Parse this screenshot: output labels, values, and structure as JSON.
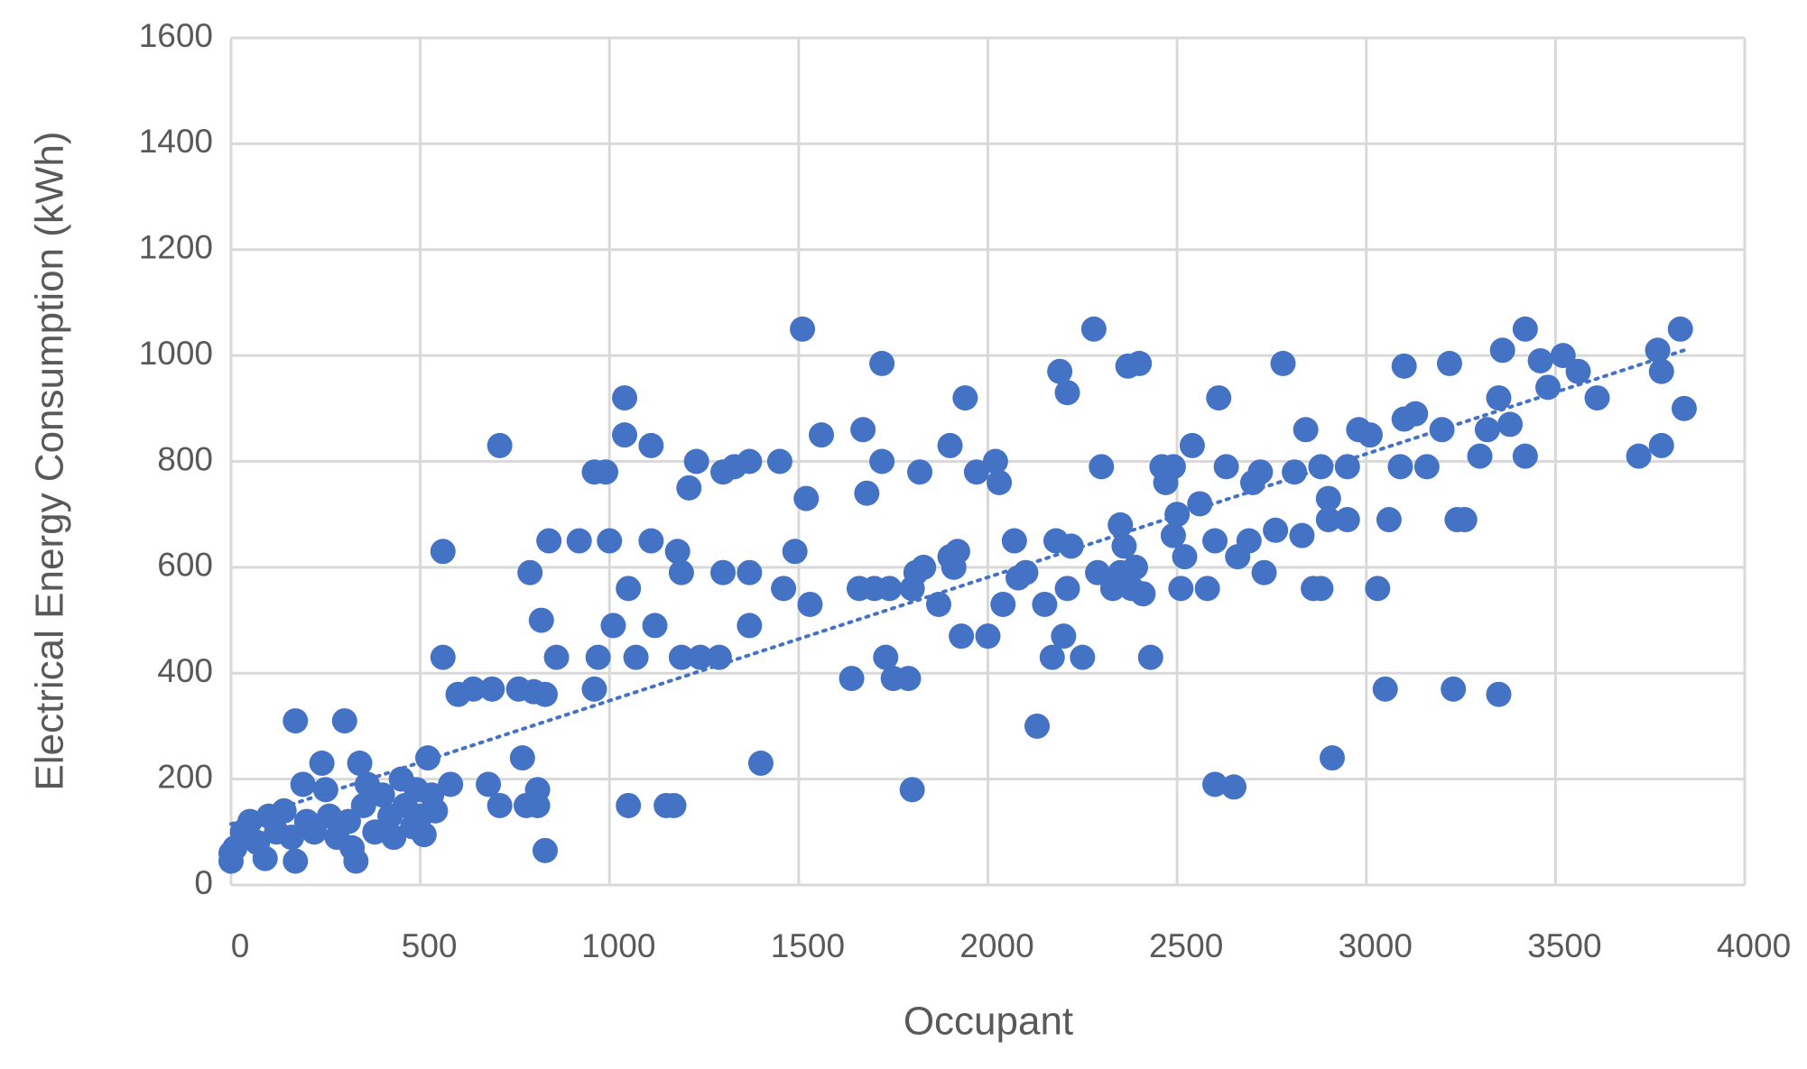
{
  "chart_data": {
    "type": "scatter",
    "xlabel": "Occupant",
    "ylabel": "Electrical Energy Consumption (kWh)",
    "color": "#4472c4",
    "grid": true,
    "xlim": [
      0,
      4000
    ],
    "xticks": [
      0,
      500,
      1000,
      1500,
      2000,
      2500,
      3000,
      3500,
      4000
    ],
    "ylim": [
      0,
      1600
    ],
    "yticks": [
      0,
      200,
      400,
      600,
      800,
      1000,
      1200,
      1400,
      1600
    ],
    "x": [
      0,
      0,
      10,
      30,
      50,
      70,
      90,
      100,
      120,
      140,
      160,
      170,
      170,
      190,
      200,
      220,
      240,
      250,
      260,
      280,
      300,
      310,
      320,
      330,
      340,
      350,
      360,
      380,
      400,
      420,
      430,
      450,
      460,
      480,
      490,
      500,
      510,
      520,
      530,
      540,
      560,
      560,
      580,
      600,
      640,
      680,
      690,
      710,
      710,
      760,
      770,
      780,
      790,
      800,
      810,
      810,
      820,
      830,
      830,
      840,
      860,
      920,
      960,
      960,
      970,
      990,
      1000,
      1010,
      1040,
      1040,
      1050,
      1050,
      1070,
      1110,
      1110,
      1120,
      1150,
      1170,
      1180,
      1190,
      1190,
      1210,
      1230,
      1240,
      1290,
      1300,
      1300,
      1330,
      1370,
      1370,
      1370,
      1400,
      1450,
      1460,
      1490,
      1510,
      1520,
      1530,
      1560,
      1640,
      1660,
      1670,
      1680,
      1700,
      1720,
      1720,
      1730,
      1740,
      1750,
      1790,
      1800,
      1800,
      1810,
      1820,
      1830,
      1870,
      1900,
      1900,
      1910,
      1920,
      1930,
      1940,
      1970,
      2000,
      2020,
      2030,
      2040,
      2070,
      2080,
      2100,
      2130,
      2150,
      2170,
      2180,
      2190,
      2200,
      2210,
      2210,
      2220,
      2250,
      2280,
      2290,
      2300,
      2330,
      2350,
      2350,
      2360,
      2370,
      2380,
      2390,
      2400,
      2410,
      2430,
      2460,
      2470,
      2490,
      2490,
      2500,
      2510,
      2520,
      2540,
      2560,
      2580,
      2600,
      2600,
      2610,
      2630,
      2650,
      2660,
      2690,
      2700,
      2720,
      2730,
      2760,
      2780,
      2810,
      2830,
      2840,
      2860,
      2880,
      2880,
      2900,
      2900,
      2910,
      2950,
      2950,
      2980,
      3010,
      3030,
      3050,
      3060,
      3090,
      3100,
      3100,
      3130,
      3160,
      3200,
      3220,
      3230,
      3240,
      3260,
      3300,
      3320,
      3350,
      3350,
      3360,
      3380,
      3420,
      3420,
      3460,
      3480,
      3520,
      3560,
      3610,
      3720,
      3770,
      3780,
      3780,
      3830,
      3840
    ],
    "values": [
      60,
      45,
      70,
      100,
      120,
      80,
      50,
      130,
      100,
      140,
      90,
      45,
      310,
      190,
      120,
      100,
      230,
      180,
      130,
      90,
      310,
      120,
      70,
      45,
      230,
      150,
      190,
      100,
      170,
      130,
      90,
      200,
      150,
      110,
      180,
      130,
      95,
      240,
      170,
      140,
      430,
      630,
      190,
      360,
      370,
      190,
      370,
      150,
      830,
      370,
      240,
      150,
      590,
      365,
      180,
      150,
      500,
      360,
      65,
      650,
      430,
      650,
      780,
      370,
      430,
      780,
      650,
      490,
      850,
      920,
      560,
      150,
      430,
      830,
      650,
      490,
      150,
      150,
      630,
      590,
      430,
      750,
      800,
      430,
      430,
      590,
      780,
      790,
      800,
      590,
      490,
      230,
      800,
      560,
      630,
      1050,
      730,
      530,
      850,
      390,
      560,
      860,
      740,
      560,
      800,
      985,
      430,
      560,
      390,
      390,
      560,
      180,
      590,
      780,
      600,
      530,
      830,
      620,
      600,
      630,
      470,
      920,
      780,
      470,
      800,
      760,
      530,
      650,
      580,
      590,
      300,
      530,
      430,
      650,
      970,
      470,
      930,
      560,
      640,
      430,
      1050,
      590,
      790,
      560,
      590,
      680,
      640,
      980,
      560,
      600,
      985,
      550,
      430,
      790,
      760,
      790,
      660,
      700,
      560,
      620,
      830,
      720,
      560,
      190,
      650,
      920,
      790,
      185,
      620,
      650,
      760,
      780,
      590,
      670,
      985,
      780,
      660,
      860,
      560,
      790,
      560,
      690,
      730,
      240,
      690,
      790,
      860,
      850,
      560,
      370,
      690,
      790,
      980,
      880,
      890,
      790,
      860,
      985,
      370,
      690,
      690,
      810,
      860,
      920,
      360,
      1010,
      870,
      1050,
      810,
      990,
      940,
      1000,
      970,
      920,
      810,
      1010,
      830,
      970,
      1050,
      900
    ],
    "trendline": {
      "x": [
        0,
        3840
      ],
      "y": [
        115,
        1010
      ]
    }
  }
}
